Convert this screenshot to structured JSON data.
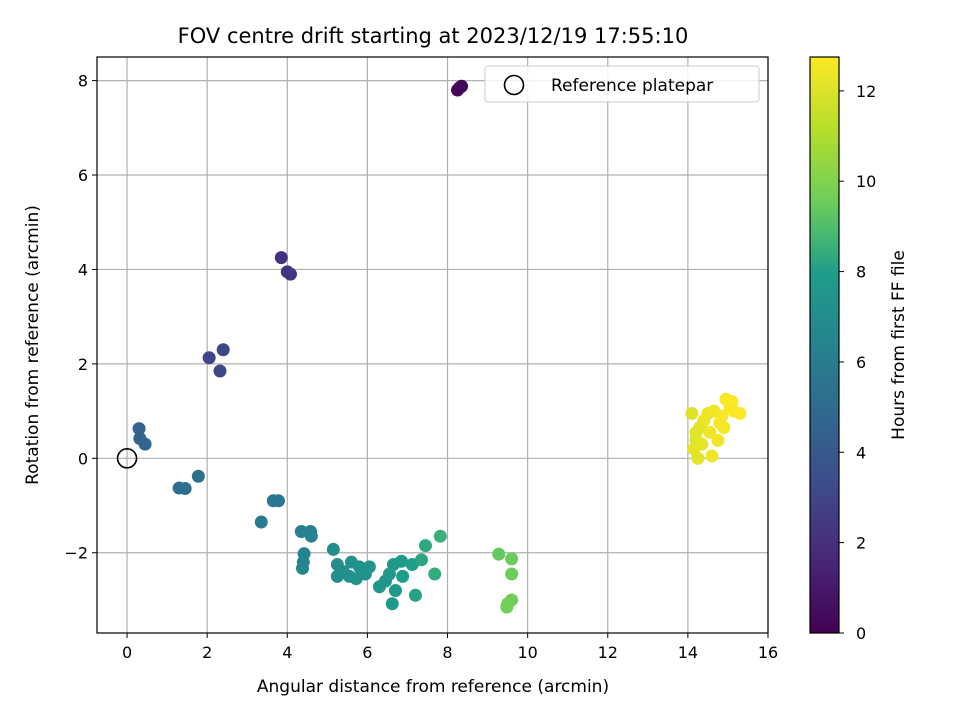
{
  "chart_data": {
    "type": "scatter",
    "title": "FOV centre drift starting at 2023/12/19 17:55:10",
    "xlabel": "Angular distance from reference (arcmin)",
    "ylabel": "Rotation from reference (arcmin)",
    "xlim": [
      -0.75,
      16
    ],
    "ylim": [
      -3.7,
      8.5
    ],
    "xticks": [
      0,
      2,
      4,
      6,
      8,
      10,
      12,
      14,
      16
    ],
    "yticks": [
      -2,
      0,
      2,
      4,
      6,
      8
    ],
    "xtick_labels": [
      "0",
      "2",
      "4",
      "6",
      "8",
      "10",
      "12",
      "14",
      "16"
    ],
    "ytick_labels": [
      "−2",
      "0",
      "2",
      "4",
      "6",
      "8"
    ],
    "grid": true,
    "colormap": "viridis",
    "colorbar": {
      "label": "Hours from first FF file",
      "range": [
        0,
        12.75
      ],
      "ticks": [
        0,
        2,
        4,
        6,
        8,
        10,
        12
      ],
      "tick_labels": [
        "0",
        "2",
        "4",
        "6",
        "8",
        "10",
        "12"
      ]
    },
    "legend": {
      "placement": "upper-right",
      "entries": [
        {
          "label": "Reference platepar",
          "marker": "open-circle"
        }
      ]
    },
    "reference_point": {
      "x": 0,
      "y": 0
    },
    "points": [
      {
        "x": 8.3,
        "y": 7.85,
        "c": 0.1
      },
      {
        "x": 8.25,
        "y": 7.8,
        "c": 0.15
      },
      {
        "x": 8.35,
        "y": 7.88,
        "c": 0.2
      },
      {
        "x": 3.85,
        "y": 4.25,
        "c": 2.1
      },
      {
        "x": 4.0,
        "y": 3.95,
        "c": 2.2
      },
      {
        "x": 4.08,
        "y": 3.9,
        "c": 2.25
      },
      {
        "x": 2.05,
        "y": 2.13,
        "c": 3.0
      },
      {
        "x": 2.4,
        "y": 2.3,
        "c": 3.05
      },
      {
        "x": 2.32,
        "y": 1.85,
        "c": 3.1
      },
      {
        "x": 0.3,
        "y": 0.63,
        "c": 4.6
      },
      {
        "x": 0.32,
        "y": 0.42,
        "c": 4.65
      },
      {
        "x": 0.45,
        "y": 0.3,
        "c": 4.7
      },
      {
        "x": 1.3,
        "y": -0.63,
        "c": 5.2
      },
      {
        "x": 1.45,
        "y": -0.64,
        "c": 5.25
      },
      {
        "x": 1.78,
        "y": -0.38,
        "c": 5.3
      },
      {
        "x": 3.35,
        "y": -1.35,
        "c": 5.9
      },
      {
        "x": 3.65,
        "y": -0.9,
        "c": 5.7
      },
      {
        "x": 3.78,
        "y": -0.9,
        "c": 5.75
      },
      {
        "x": 4.35,
        "y": -1.55,
        "c": 6.2
      },
      {
        "x": 4.58,
        "y": -1.55,
        "c": 6.25
      },
      {
        "x": 4.6,
        "y": -1.65,
        "c": 6.3
      },
      {
        "x": 4.42,
        "y": -2.02,
        "c": 6.4
      },
      {
        "x": 4.4,
        "y": -2.2,
        "c": 6.45
      },
      {
        "x": 4.38,
        "y": -2.33,
        "c": 6.5
      },
      {
        "x": 5.15,
        "y": -1.93,
        "c": 7.0
      },
      {
        "x": 5.25,
        "y": -2.25,
        "c": 7.05
      },
      {
        "x": 5.25,
        "y": -2.5,
        "c": 7.1
      },
      {
        "x": 5.4,
        "y": -2.4,
        "c": 7.15
      },
      {
        "x": 5.6,
        "y": -2.2,
        "c": 7.2
      },
      {
        "x": 5.55,
        "y": -2.5,
        "c": 7.25
      },
      {
        "x": 5.72,
        "y": -2.55,
        "c": 7.3
      },
      {
        "x": 5.8,
        "y": -2.3,
        "c": 7.35
      },
      {
        "x": 5.95,
        "y": -2.45,
        "c": 7.4
      },
      {
        "x": 6.05,
        "y": -2.3,
        "c": 7.45
      },
      {
        "x": 6.3,
        "y": -2.72,
        "c": 7.55
      },
      {
        "x": 6.45,
        "y": -2.6,
        "c": 7.6
      },
      {
        "x": 6.55,
        "y": -2.45,
        "c": 7.65
      },
      {
        "x": 6.65,
        "y": -2.25,
        "c": 7.7
      },
      {
        "x": 6.7,
        "y": -2.8,
        "c": 7.75
      },
      {
        "x": 6.62,
        "y": -3.08,
        "c": 7.8
      },
      {
        "x": 6.85,
        "y": -2.18,
        "c": 7.85
      },
      {
        "x": 6.88,
        "y": -2.5,
        "c": 7.9
      },
      {
        "x": 7.12,
        "y": -2.25,
        "c": 8.0
      },
      {
        "x": 7.2,
        "y": -2.9,
        "c": 8.1
      },
      {
        "x": 7.35,
        "y": -2.15,
        "c": 8.2
      },
      {
        "x": 7.45,
        "y": -1.85,
        "c": 8.3
      },
      {
        "x": 7.68,
        "y": -2.45,
        "c": 8.4
      },
      {
        "x": 7.82,
        "y": -1.65,
        "c": 8.6
      },
      {
        "x": 9.28,
        "y": -2.03,
        "c": 9.4
      },
      {
        "x": 9.6,
        "y": -2.13,
        "c": 9.5
      },
      {
        "x": 9.6,
        "y": -2.45,
        "c": 9.55
      },
      {
        "x": 9.6,
        "y": -3.0,
        "c": 9.6
      },
      {
        "x": 9.5,
        "y": -3.08,
        "c": 9.65
      },
      {
        "x": 9.48,
        "y": -3.15,
        "c": 9.7
      },
      {
        "x": 14.1,
        "y": 0.95,
        "c": 12.0
      },
      {
        "x": 14.3,
        "y": 0.65,
        "c": 12.1
      },
      {
        "x": 14.2,
        "y": 0.4,
        "c": 12.05
      },
      {
        "x": 14.15,
        "y": 0.2,
        "c": 12.2
      },
      {
        "x": 14.25,
        "y": 0.0,
        "c": 12.15
      },
      {
        "x": 14.35,
        "y": 0.3,
        "c": 12.25
      },
      {
        "x": 14.4,
        "y": 0.8,
        "c": 12.3
      },
      {
        "x": 14.5,
        "y": 0.95,
        "c": 12.35
      },
      {
        "x": 14.55,
        "y": 0.55,
        "c": 12.4
      },
      {
        "x": 14.6,
        "y": 0.05,
        "c": 12.45
      },
      {
        "x": 14.65,
        "y": 1.0,
        "c": 12.4
      },
      {
        "x": 14.75,
        "y": 0.38,
        "c": 12.5
      },
      {
        "x": 14.8,
        "y": 0.75,
        "c": 12.55
      },
      {
        "x": 14.85,
        "y": 0.9,
        "c": 12.6
      },
      {
        "x": 14.9,
        "y": 0.65,
        "c": 12.55
      },
      {
        "x": 14.95,
        "y": 1.25,
        "c": 12.65
      },
      {
        "x": 15.05,
        "y": 1.1,
        "c": 12.6
      },
      {
        "x": 15.1,
        "y": 1.2,
        "c": 12.7
      },
      {
        "x": 15.15,
        "y": 1.0,
        "c": 12.65
      },
      {
        "x": 15.3,
        "y": 0.95,
        "c": 12.7
      },
      {
        "x": 14.2,
        "y": 0.55,
        "c": 12.1
      }
    ]
  }
}
